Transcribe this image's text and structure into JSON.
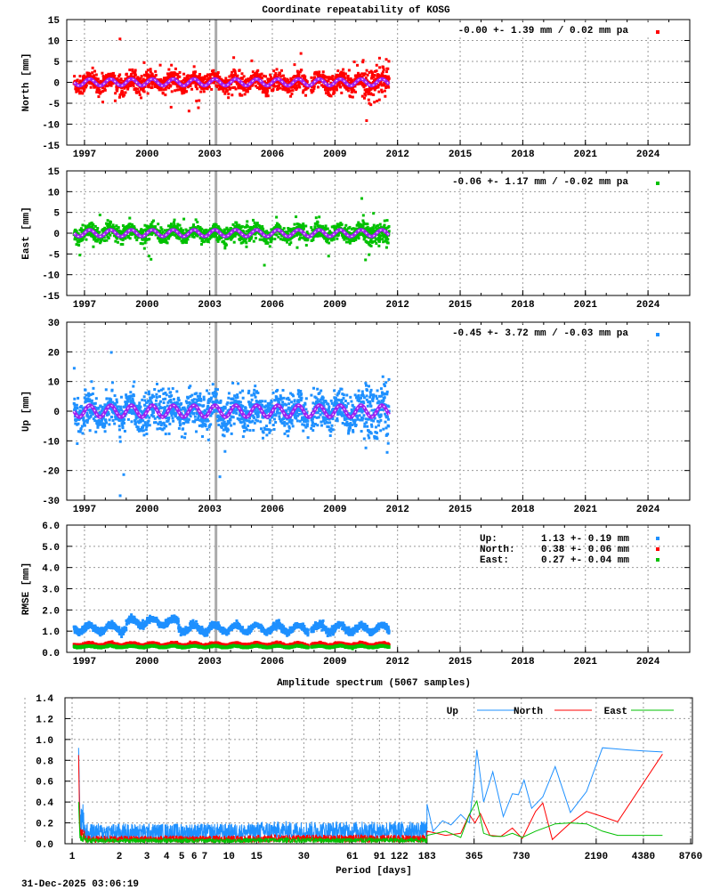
{
  "chart_data": [
    {
      "type": "scatter",
      "title": "Coordinate repeatability of KOSG",
      "ylabel": "North [mm]",
      "ylim": [
        -15,
        15
      ],
      "yticks": [
        -15,
        -10,
        -5,
        0,
        5,
        10,
        15
      ],
      "xlim": [
        1996.15,
        2026
      ],
      "xticks": [
        1997,
        2000,
        2003,
        2006,
        2009,
        2012,
        2015,
        2018,
        2021,
        2024
      ],
      "grid": true,
      "data_span": [
        1996.5,
        2011.6
      ],
      "marker_line_year": 2003.3,
      "scatter_sd": 1.39,
      "annual_amplitude": 0.8,
      "legend": "-0.00 +- 1.39 mm /  0.02 mm pa",
      "color": "#ff0000"
    },
    {
      "type": "scatter",
      "ylabel": "East [mm]",
      "ylim": [
        -15,
        15
      ],
      "yticks": [
        -15,
        -10,
        -5,
        0,
        5,
        10,
        15
      ],
      "xlim": [
        1996.15,
        2026
      ],
      "xticks": [
        1997,
        2000,
        2003,
        2006,
        2009,
        2012,
        2015,
        2018,
        2021,
        2024
      ],
      "grid": true,
      "data_span": [
        1996.5,
        2011.6
      ],
      "marker_line_year": 2003.3,
      "scatter_sd": 1.17,
      "annual_amplitude": 0.8,
      "legend": "-0.06 +- 1.17 mm / -0.02 mm pa",
      "color": "#00c000"
    },
    {
      "type": "scatter",
      "ylabel": "Up [mm]",
      "ylim": [
        -30,
        30
      ],
      "yticks": [
        -30,
        -20,
        -10,
        0,
        10,
        20,
        30
      ],
      "xlim": [
        1996.15,
        2026
      ],
      "xticks": [
        1997,
        2000,
        2003,
        2006,
        2009,
        2012,
        2015,
        2018,
        2021,
        2024
      ],
      "grid": true,
      "data_span": [
        1996.5,
        2011.6
      ],
      "marker_line_year": 2003.3,
      "scatter_sd": 3.72,
      "annual_amplitude": 2.0,
      "legend": "-0.45 +- 3.72 mm / -0.03 mm pa",
      "color": "#1e90ff"
    },
    {
      "type": "scatter",
      "ylabel": "RMSE [mm]",
      "ylim": [
        0,
        6
      ],
      "yticks": [
        "0.0",
        "1.0",
        "2.0",
        "3.0",
        "4.0",
        "5.0",
        "6.0"
      ],
      "xlim": [
        1996.15,
        2026
      ],
      "xticks": [
        1997,
        2000,
        2003,
        2006,
        2009,
        2012,
        2015,
        2018,
        2021,
        2024
      ],
      "grid": true,
      "data_span": [
        1996.5,
        2011.6
      ],
      "marker_line_year": 2003.3,
      "series": [
        {
          "name": "Up:",
          "mean": 1.13,
          "sd": 0.19,
          "color": "#1e90ff",
          "legend": "1.13 +- 0.19 mm"
        },
        {
          "name": "North:",
          "mean": 0.38,
          "sd": 0.06,
          "color": "#ff0000",
          "legend": "0.38 +- 0.06 mm"
        },
        {
          "name": "East:",
          "mean": 0.27,
          "sd": 0.04,
          "color": "#00c000",
          "legend": "0.27 +- 0.04 mm"
        }
      ]
    },
    {
      "type": "line",
      "title": "Amplitude spectrum (5067 samples)",
      "xlabel": "Period [days]",
      "xscale": "log",
      "xlim": [
        1,
        8760
      ],
      "xticks": [
        1,
        2,
        3,
        4,
        5,
        6,
        7,
        10,
        15,
        30,
        61,
        91,
        122,
        183,
        365,
        730,
        2190,
        4380,
        8760
      ],
      "ylim": [
        0,
        1.4
      ],
      "yticks": [
        "0.0",
        "0.2",
        "0.4",
        "0.6",
        "0.8",
        "1.0",
        "1.2",
        "1.4"
      ],
      "grid": true,
      "legend_position": "top-right",
      "series": [
        {
          "name": "Up",
          "color": "#1e90ff",
          "noise_level": 0.15,
          "x": [
            1.1,
            183,
            200,
            230,
            260,
            300,
            340,
            365,
            380,
            420,
            480,
            560,
            640,
            700,
            760,
            850,
            1000,
            1200,
            1500,
            1900,
            2400,
            2900,
            3500,
            4400,
            5800
          ],
          "y": [
            0.92,
            0.38,
            0.12,
            0.22,
            0.18,
            0.28,
            0.2,
            0.6,
            0.9,
            0.4,
            0.69,
            0.26,
            0.48,
            0.47,
            0.61,
            0.34,
            0.45,
            0.74,
            0.3,
            0.5,
            0.92,
            0.91,
            0.9,
            0.89,
            0.88
          ]
        },
        {
          "name": "North",
          "color": "#ff0000",
          "noise_level": 0.06,
          "x": [
            1.1,
            183,
            240,
            300,
            340,
            370,
            400,
            460,
            540,
            640,
            740,
            900,
            1000,
            1150,
            1500,
            1900,
            2400,
            3000,
            5800
          ],
          "y": [
            0.85,
            0.12,
            0.08,
            0.1,
            0.28,
            0.2,
            0.29,
            0.08,
            0.07,
            0.15,
            0.05,
            0.31,
            0.39,
            0.04,
            0.2,
            0.31,
            0.26,
            0.21,
            0.86
          ]
        },
        {
          "name": "East",
          "color": "#00c000",
          "noise_level": 0.04,
          "x": [
            1.1,
            183,
            240,
            300,
            340,
            380,
            420,
            480,
            560,
            640,
            740,
            900,
            1200,
            1500,
            1900,
            2400,
            3000,
            5800
          ],
          "y": [
            0.4,
            0.08,
            0.12,
            0.06,
            0.28,
            0.41,
            0.1,
            0.07,
            0.07,
            0.1,
            0.06,
            0.12,
            0.19,
            0.2,
            0.19,
            0.12,
            0.08,
            0.08
          ]
        }
      ]
    }
  ],
  "footer": {
    "timestamp": "31-Dec-2025 03:06:19"
  }
}
